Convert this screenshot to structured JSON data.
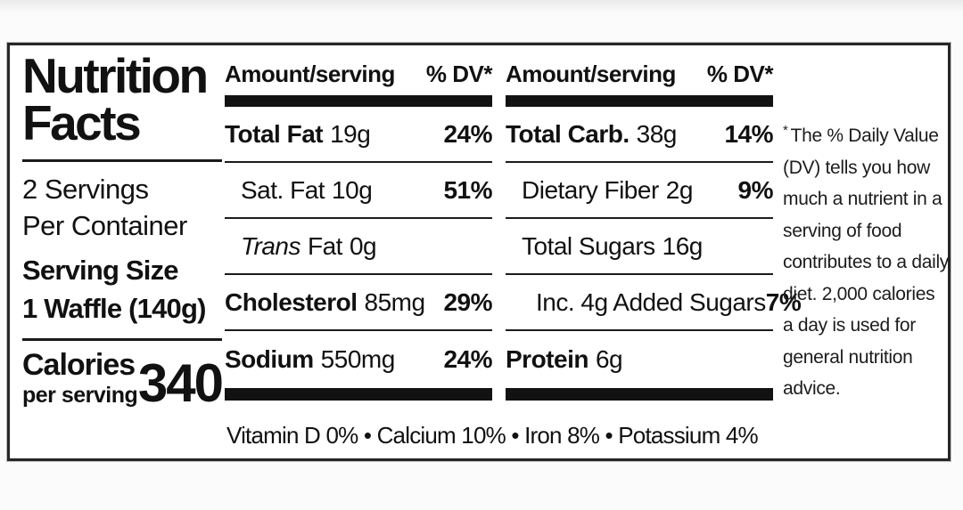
{
  "label": {
    "title_line1": "Nutrition",
    "title_line2": "Facts",
    "servings_line1": "2 Servings",
    "servings_line2": "Per Container",
    "serving_size_label": "Serving Size",
    "serving_size_value": "1 Waffle (140g)",
    "calories_label": "Calories",
    "calories_sub": "per serving",
    "calories_value": "340"
  },
  "columns": [
    {
      "header_amount": "Amount/serving",
      "header_dv": "% DV*",
      "rows": [
        {
          "name": "Total Fat",
          "amount": "19g",
          "dv": "24%"
        },
        {
          "name": "Sat. Fat",
          "amount": "10g",
          "dv": "51%"
        },
        {
          "name_italic": "Trans",
          "name": "Fat",
          "amount": "0g",
          "dv": ""
        },
        {
          "name": "Cholesterol",
          "amount": "85mg",
          "dv": "29%"
        },
        {
          "name": "Sodium",
          "amount": "550mg",
          "dv": "24%"
        }
      ]
    },
    {
      "header_amount": "Amount/serving",
      "header_dv": "% DV*",
      "rows": [
        {
          "name": "Total Carb.",
          "amount": "38g",
          "dv": "14%"
        },
        {
          "name": "Dietary Fiber",
          "amount": "2g",
          "dv": "9%"
        },
        {
          "name": "Total Sugars",
          "amount": "16g",
          "dv": ""
        },
        {
          "name": "Inc. 4g Added Sugars",
          "amount": "",
          "dv": "7%"
        },
        {
          "name": "Protein",
          "amount": "6g",
          "dv": ""
        }
      ]
    }
  ],
  "footnote": {
    "star": "*",
    "text": "The % Daily Value (DV) tells you how much a nutrient in a serving of food contributes to a daily diet. 2,000 calories a day is used for general nutrition advice."
  },
  "vitamins_line": "Vitamin D 0% • Calcium 10% • Iron 8% • Potassium 4%"
}
